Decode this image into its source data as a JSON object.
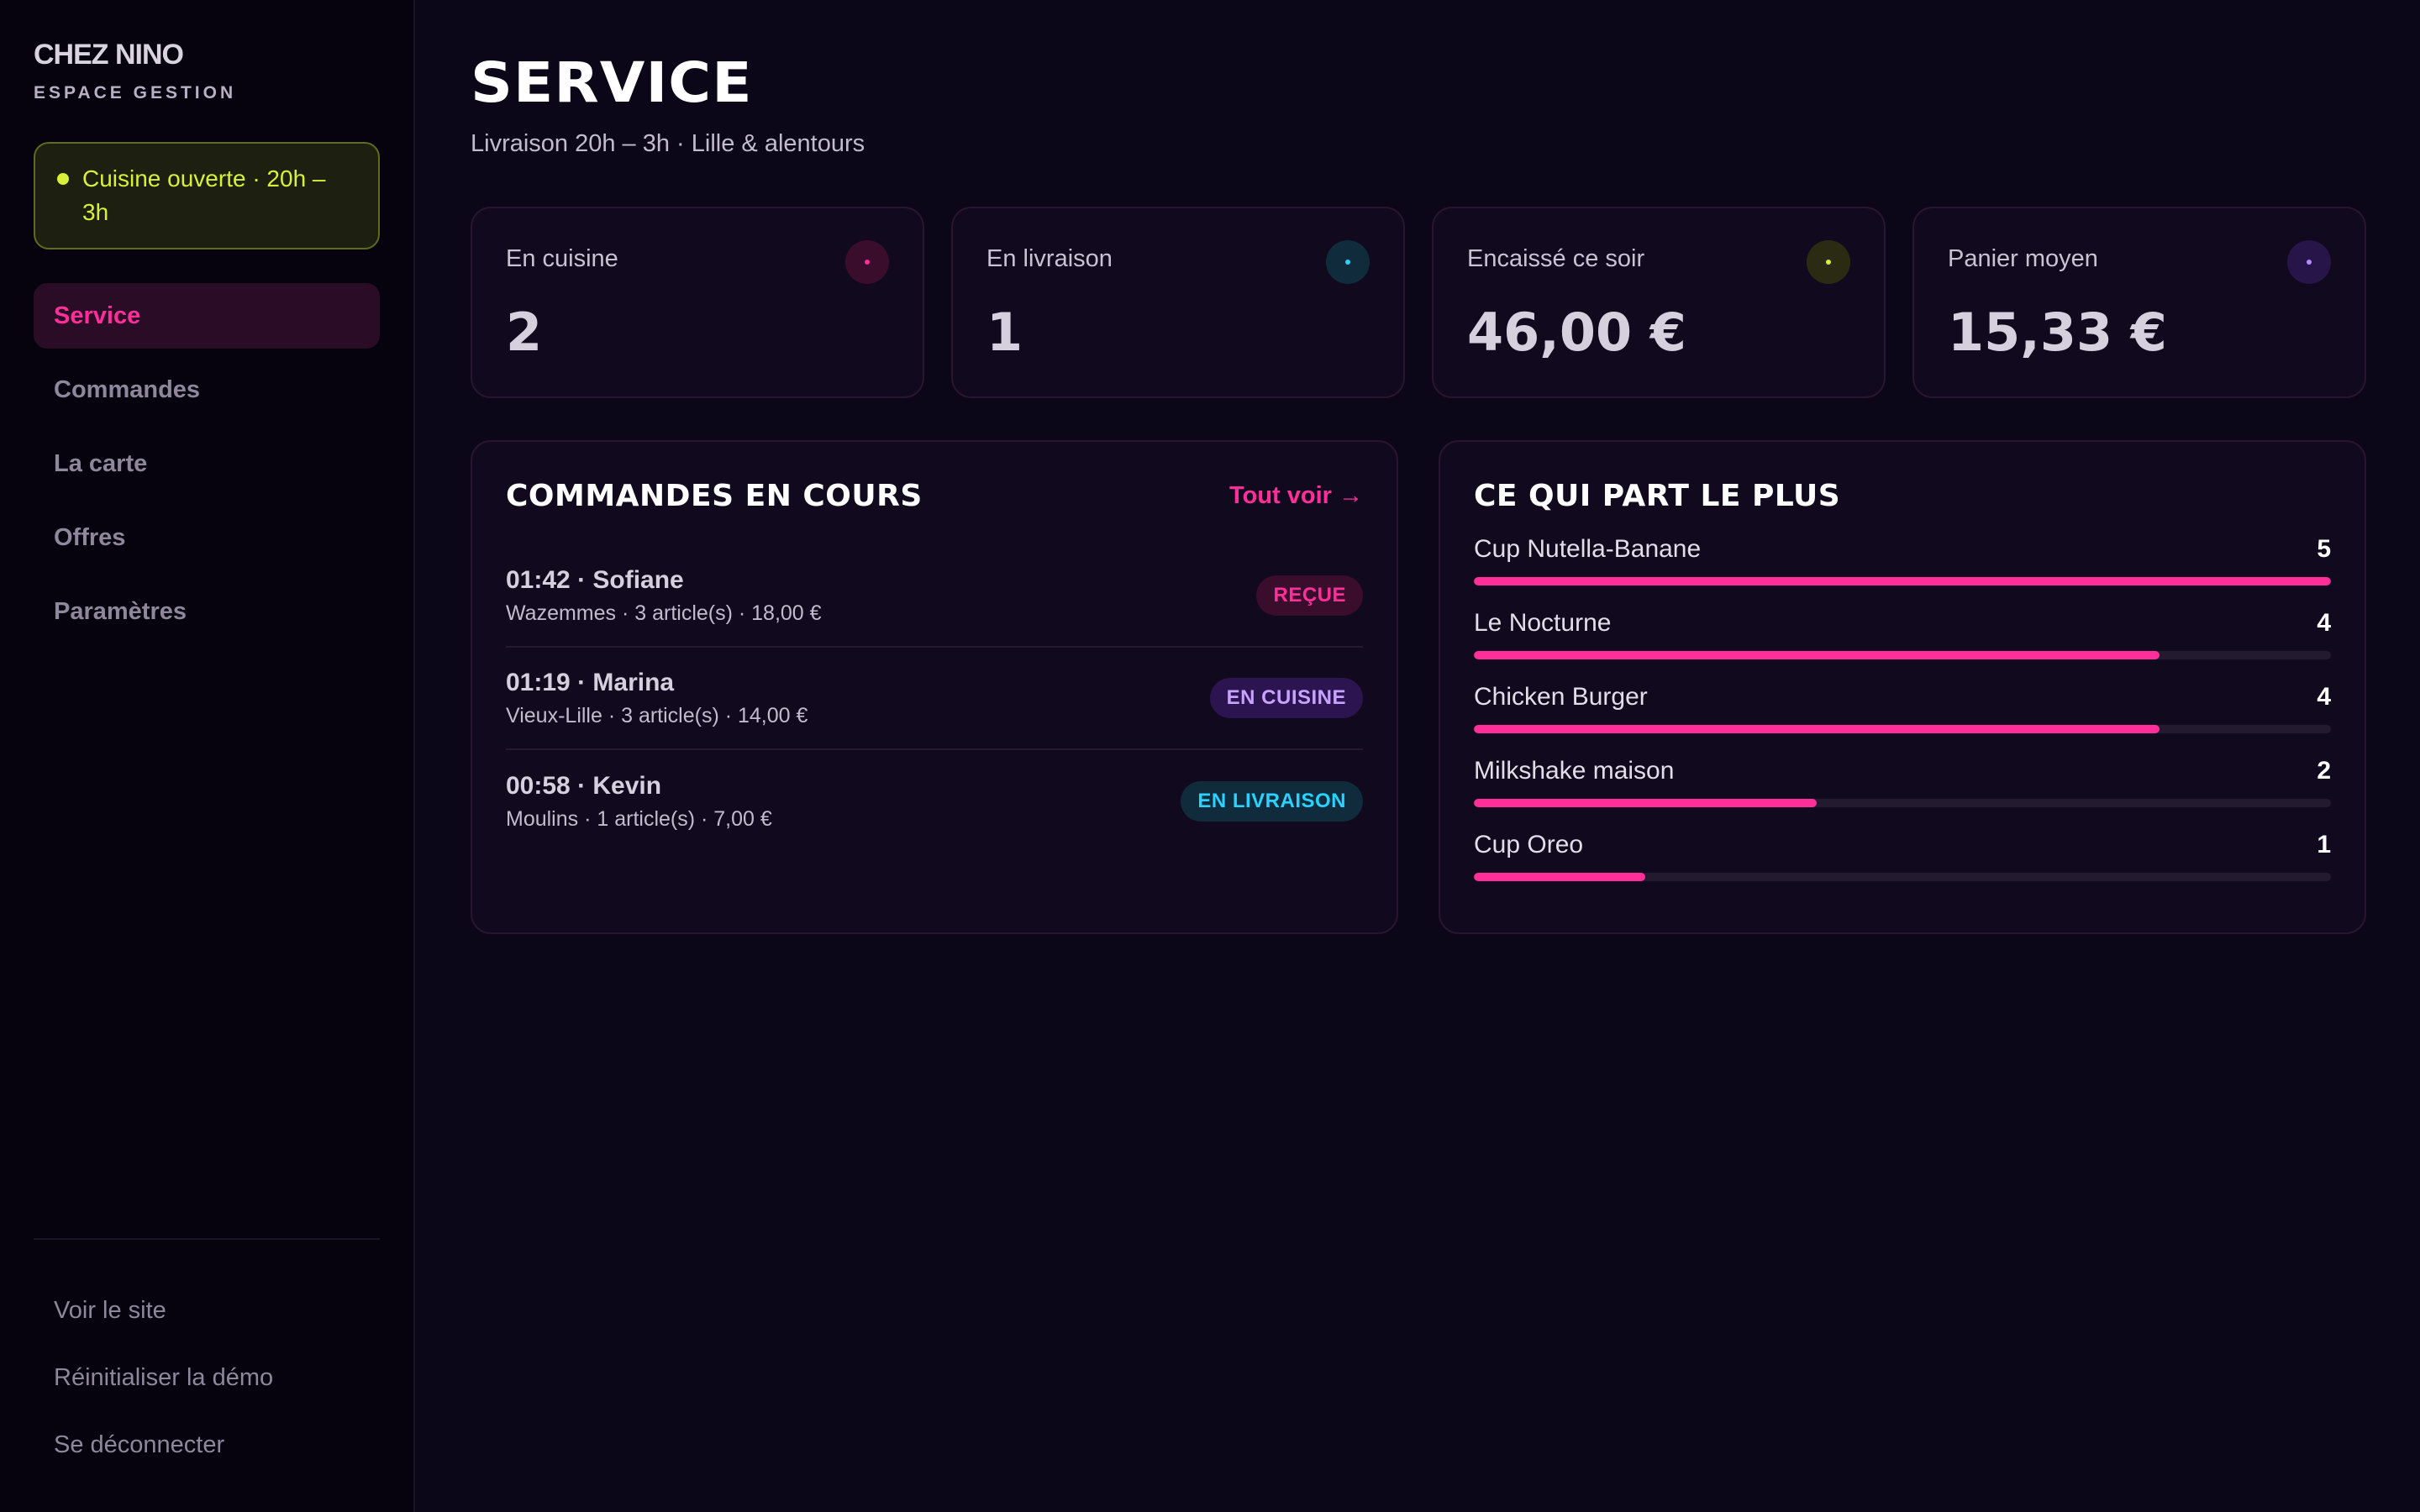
{
  "brand": {
    "name": "CHEZ NINO",
    "subtitle": "ESPACE GESTION"
  },
  "status": {
    "text": "Cuisine ouverte · 20h – 3h",
    "color": "#d8f03a"
  },
  "nav": [
    {
      "label": "Service",
      "active": true
    },
    {
      "label": "Commandes",
      "active": false
    },
    {
      "label": "La carte",
      "active": false
    },
    {
      "label": "Offres",
      "active": false
    },
    {
      "label": "Paramètres",
      "active": false
    }
  ],
  "footer_links": [
    "Voir le site",
    "Réinitialiser la démo",
    "Se déconnecter"
  ],
  "page": {
    "title": "SERVICE",
    "subtitle": "Livraison 20h – 3h · Lille & alentours"
  },
  "kpis": [
    {
      "label": "En cuisine",
      "value": "2",
      "dot_color": "#ff2f9a",
      "dot_bg": "#3a0d2c"
    },
    {
      "label": "En livraison",
      "value": "1",
      "dot_color": "#29d2ff",
      "dot_bg": "#0f2b3c"
    },
    {
      "label": "Encaissé ce soir",
      "value": "46,00 €",
      "dot_color": "#d8f03a",
      "dot_bg": "#2a2b12"
    },
    {
      "label": "Panier moyen",
      "value": "15,33 €",
      "dot_color": "#b38cff",
      "dot_bg": "#271448"
    }
  ],
  "orders_panel": {
    "title": "COMMANDES EN COURS",
    "see_all": "Tout voir →",
    "orders": [
      {
        "main": "01:42 · Sofiane",
        "meta": "Wazemmes · 3 article(s) · 18,00 €",
        "status": "REÇUE",
        "status_key": "recue"
      },
      {
        "main": "01:19 · Marina",
        "meta": "Vieux-Lille · 3 article(s) · 14,00 €",
        "status": "EN CUISINE",
        "status_key": "cuisine"
      },
      {
        "main": "00:58 · Kevin",
        "meta": "Moulins · 1 article(s) · 7,00 €",
        "status": "EN LIVRAISON",
        "status_key": "livraison"
      }
    ]
  },
  "top_panel": {
    "title": "CE QUI PART LE PLUS",
    "max": 5,
    "items": [
      {
        "name": "Cup Nutella-Banane",
        "count": 5
      },
      {
        "name": "Le Nocturne",
        "count": 4
      },
      {
        "name": "Chicken Burger",
        "count": 4
      },
      {
        "name": "Milkshake maison",
        "count": 2
      },
      {
        "name": "Cup Oreo",
        "count": 1
      }
    ]
  },
  "colors": {
    "accent": "#ff2f9a",
    "background": "#0b0618"
  }
}
